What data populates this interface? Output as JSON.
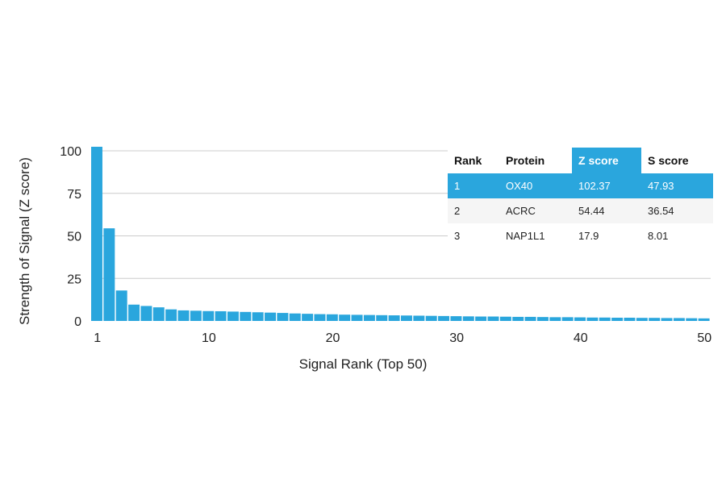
{
  "colors": {
    "bar": "#2aa6dd",
    "highlight_row": "#2aa6dd",
    "gridline": "#cccccc",
    "row_alt": "#f5f5f5"
  },
  "chart_data": {
    "type": "bar",
    "xlabel": "Signal Rank (Top 50)",
    "ylabel": "Strength of Signal (Z score)",
    "ylim": [
      0,
      102.37
    ],
    "yticks": [
      0,
      25,
      50,
      75,
      100
    ],
    "xticks": [
      1,
      10,
      20,
      30,
      40,
      50
    ],
    "grid": true,
    "x": [
      1,
      2,
      3,
      4,
      5,
      6,
      7,
      8,
      9,
      10,
      11,
      12,
      13,
      14,
      15,
      16,
      17,
      18,
      19,
      20,
      21,
      22,
      23,
      24,
      25,
      26,
      27,
      28,
      29,
      30,
      31,
      32,
      33,
      34,
      35,
      36,
      37,
      38,
      39,
      40,
      41,
      42,
      43,
      44,
      45,
      46,
      47,
      48,
      49,
      50
    ],
    "values": [
      102.37,
      54.44,
      17.9,
      9.6,
      8.8,
      8.0,
      6.8,
      6.2,
      6.0,
      5.8,
      5.7,
      5.5,
      5.3,
      5.1,
      4.9,
      4.7,
      4.4,
      4.2,
      4.0,
      3.9,
      3.7,
      3.6,
      3.5,
      3.4,
      3.3,
      3.2,
      3.1,
      3.0,
      2.9,
      2.8,
      2.7,
      2.6,
      2.6,
      2.5,
      2.4,
      2.4,
      2.3,
      2.2,
      2.2,
      2.1,
      2.0,
      2.0,
      1.9,
      1.9,
      1.8,
      1.8,
      1.7,
      1.7,
      1.6,
      1.5
    ]
  },
  "table": {
    "headers": [
      "Rank",
      "Protein",
      "Z score",
      "S score"
    ],
    "rows": [
      [
        "1",
        "OX40",
        "102.37",
        "47.93"
      ],
      [
        "2",
        "ACRC",
        "54.44",
        "36.54"
      ],
      [
        "3",
        "NAP1L1",
        "17.9",
        "8.01"
      ]
    ],
    "highlight_row": 0,
    "highlight_column": 2
  }
}
